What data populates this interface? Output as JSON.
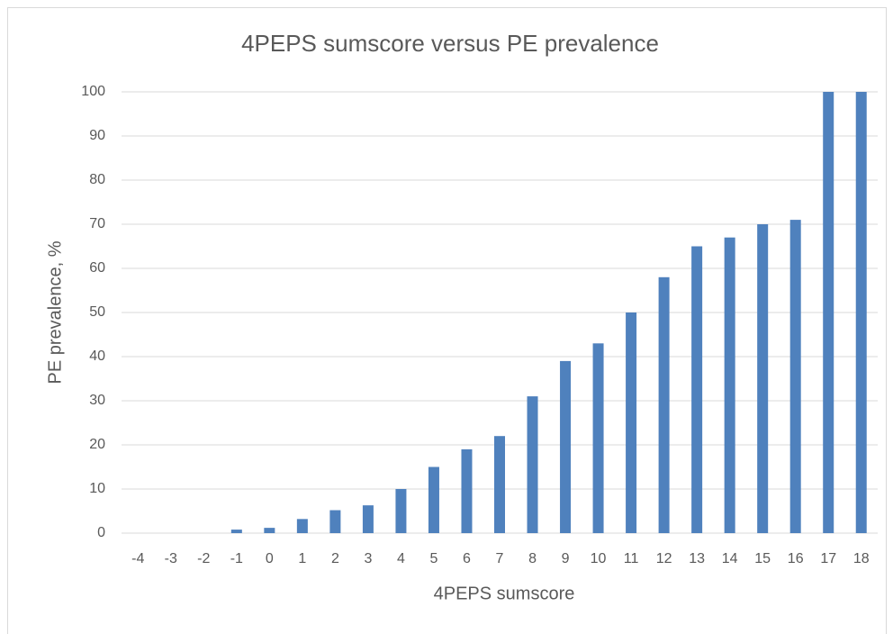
{
  "chart_data": {
    "type": "bar",
    "title": "4PEPS sumscore versus PE prevalence",
    "x_label": "4PEPS sumscore",
    "y_label": "PE prevalence, %",
    "categories": [
      "-4",
      "-3",
      "-2",
      "-1",
      "0",
      "1",
      "2",
      "3",
      "4",
      "5",
      "6",
      "7",
      "8",
      "9",
      "10",
      "11",
      "12",
      "13",
      "14",
      "15",
      "16",
      "17",
      "18"
    ],
    "values": [
      0,
      0,
      0,
      0.8,
      1.2,
      3.2,
      5.2,
      6.3,
      10,
      15,
      19,
      22,
      31,
      39,
      43,
      50,
      58,
      65,
      67,
      70,
      71,
      100,
      100
    ],
    "color": "#4f81bd",
    "ylim": [
      0,
      100
    ],
    "yticks": [
      0,
      10,
      20,
      30,
      40,
      50,
      60,
      70,
      80,
      90,
      100
    ],
    "grid": true
  }
}
